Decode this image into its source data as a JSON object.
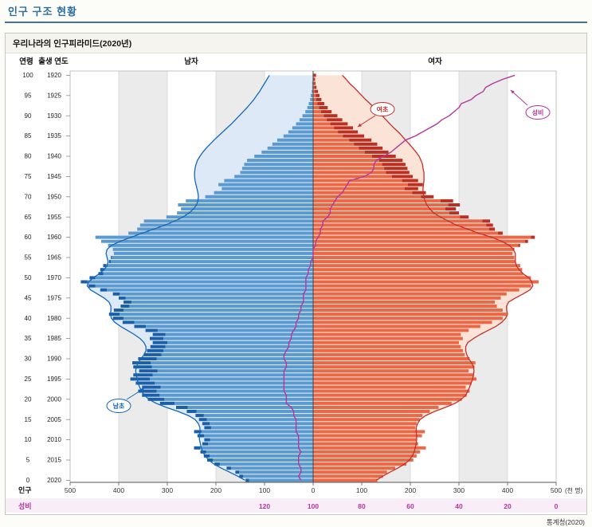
{
  "page": {
    "title": "인구 구조 현황",
    "source": "통계청(2020)"
  },
  "panel": {
    "title": "우리나라의 인구피라미드(2020년)"
  },
  "chart_data": {
    "type": "bar",
    "subtype": "population-pyramid",
    "title": "우리나라의 인구피라미드(2020년)",
    "unit": "thousand persons per single year of age",
    "series_headers": {
      "male": "남자",
      "female": "여자"
    },
    "axes": {
      "age": {
        "label": "연령",
        "ticks": [
          100,
          95,
          90,
          85,
          80,
          75,
          70,
          65,
          60,
          55,
          50,
          45,
          40,
          35,
          30,
          25,
          20,
          15,
          10,
          5,
          0
        ]
      },
      "birth_year": {
        "label": "출생 연도",
        "ticks": [
          1920,
          1925,
          1930,
          1935,
          1940,
          1945,
          1950,
          1955,
          1960,
          1965,
          1970,
          1975,
          1980,
          1985,
          1990,
          1995,
          2000,
          2005,
          2010,
          2015,
          2020
        ]
      },
      "population": {
        "label": "인구",
        "unit_label": "(천 명)",
        "ticks": [
          500,
          400,
          300,
          200,
          100,
          0,
          100,
          200,
          300,
          400,
          500
        ],
        "max_per_side": 500
      },
      "sex_ratio": {
        "label": "성비",
        "ticks": [
          120,
          100,
          80,
          60,
          40,
          20,
          0
        ],
        "range": [
          0,
          120
        ]
      }
    },
    "annotations": {
      "female_surplus": "여초",
      "male_surplus": "남초",
      "ratio_line": "성비"
    },
    "ages_are_index_0_to_100": true,
    "male_thousands": [
      139,
      152,
      160,
      178,
      203,
      218,
      225,
      232,
      245,
      228,
      224,
      238,
      245,
      224,
      228,
      235,
      242,
      260,
      282,
      315,
      340,
      352,
      360,
      352,
      365,
      376,
      370,
      358,
      370,
      372,
      360,
      348,
      342,
      335,
      330,
      336,
      330,
      345,
      368,
      392,
      412,
      420,
      410,
      396,
      390,
      400,
      412,
      438,
      462,
      478,
      460,
      442,
      438,
      432,
      420,
      416,
      410,
      412,
      422,
      436,
      448,
      380,
      362,
      356,
      348,
      302,
      280,
      272,
      278,
      262,
      222,
      204,
      188,
      195,
      183,
      162,
      150,
      146,
      142,
      136,
      121,
      106,
      94,
      84,
      74,
      61,
      51,
      43,
      35,
      28,
      22,
      16,
      12,
      9,
      6,
      5,
      3,
      2,
      2,
      1,
      1
    ],
    "female_thousands": [
      132,
      144,
      152,
      169,
      192,
      206,
      213,
      220,
      232,
      216,
      212,
      224,
      230,
      210,
      213,
      219,
      225,
      240,
      258,
      285,
      306,
      316,
      322,
      314,
      326,
      336,
      330,
      320,
      332,
      334,
      322,
      312,
      308,
      304,
      300,
      308,
      304,
      320,
      344,
      368,
      390,
      398,
      390,
      378,
      374,
      386,
      398,
      424,
      448,
      464,
      448,
      432,
      430,
      426,
      416,
      414,
      410,
      414,
      426,
      442,
      456,
      390,
      374,
      370,
      364,
      320,
      300,
      294,
      302,
      288,
      248,
      232,
      216,
      226,
      216,
      205,
      198,
      194,
      190,
      184,
      170,
      155,
      143,
      132,
      120,
      105,
      92,
      82,
      71,
      60,
      50,
      38,
      30,
      23,
      17,
      13,
      10,
      7,
      5,
      4,
      6
    ],
    "male_outline_thousands": [
      140,
      155,
      172,
      189,
      204,
      215,
      222,
      227,
      230,
      232,
      234,
      234,
      233,
      233,
      236,
      243,
      257,
      278,
      302,
      323,
      338,
      347,
      353,
      357,
      360,
      362,
      364,
      365,
      364,
      360,
      354,
      348,
      344,
      344,
      348,
      356,
      368,
      382,
      396,
      408,
      415,
      417,
      416,
      416,
      420,
      430,
      444,
      458,
      465,
      462,
      452,
      440,
      430,
      424,
      422,
      424,
      426,
      424,
      415,
      397,
      375,
      352,
      328,
      305,
      285,
      268,
      255,
      246,
      240,
      237,
      236,
      237,
      239,
      241,
      243,
      244,
      244,
      243,
      241,
      238,
      233,
      227,
      220,
      212,
      204,
      195,
      186,
      177,
      168,
      160,
      152,
      144,
      136,
      129,
      122,
      116,
      110,
      105,
      100,
      95,
      90
    ],
    "female_outline_thousands": [
      130,
      143,
      158,
      174,
      188,
      198,
      204,
      208,
      210,
      212,
      213,
      213,
      212,
      212,
      215,
      220,
      232,
      250,
      272,
      292,
      305,
      314,
      318,
      322,
      325,
      328,
      330,
      331,
      330,
      326,
      320,
      316,
      314,
      314,
      318,
      330,
      344,
      360,
      376,
      388,
      396,
      400,
      398,
      398,
      402,
      416,
      432,
      446,
      452,
      450,
      444,
      432,
      424,
      418,
      416,
      416,
      416,
      412,
      404,
      388,
      368,
      340,
      318,
      295,
      278,
      262,
      248,
      240,
      234,
      230,
      228,
      226,
      226,
      227,
      228,
      228,
      228,
      226,
      225,
      222,
      218,
      212,
      205,
      198,
      190,
      183,
      175,
      166,
      158,
      150,
      142,
      133,
      125,
      117,
      108,
      100,
      92,
      84,
      75,
      68,
      60
    ],
    "sex_ratio_line": [
      105,
      106,
      105,
      105,
      106,
      106,
      106,
      105,
      106,
      106,
      106,
      106,
      107,
      107,
      107,
      107,
      108,
      108,
      109,
      111,
      111,
      111,
      112,
      112,
      112,
      112,
      112,
      112,
      111,
      111,
      112,
      112,
      111,
      110,
      110,
      109,
      109,
      108,
      107,
      107,
      106,
      106,
      105,
      105,
      104,
      104,
      104,
      103,
      103,
      103,
      103,
      102,
      102,
      101,
      101,
      100,
      100,
      100,
      99,
      99,
      98,
      97,
      97,
      96,
      96,
      94,
      93,
      93,
      92,
      91,
      90,
      88,
      87,
      86,
      85,
      79,
      76,
      75,
      75,
      74,
      71,
      68,
      66,
      64,
      62,
      58,
      55,
      52,
      49,
      47,
      44,
      42,
      40,
      39,
      35,
      33,
      30,
      29,
      26,
      22,
      17
    ],
    "colors": {
      "male_bar": "#5b9ad0",
      "male_dark": "#1a5fa8",
      "male_fill": "#dde9f6",
      "male_line": "#1467b8",
      "female_bar": "#eb6745",
      "female_dark": "#bc3023",
      "female_fill": "#fbe4d7",
      "female_line": "#c62f2a",
      "ratio_line": "#b2379b",
      "band": "#ebebeb",
      "title_blue": "#2e6d9e",
      "rule_blue": "#44719f",
      "ratio_band_bg": "#f9eef8"
    }
  }
}
